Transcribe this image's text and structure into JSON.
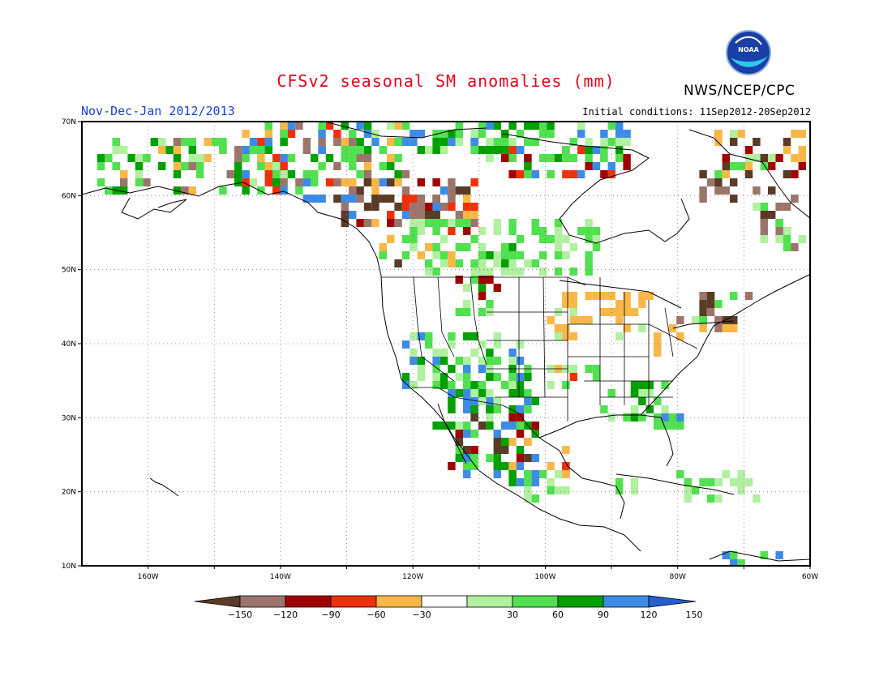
{
  "header": {
    "title": "CFSv2 seasonal SM anomalies (mm)",
    "agency": "NWS/NCEP/CPC",
    "logo_text": "NOAA",
    "period": "Nov-Dec-Jan 2012/2013",
    "initial_conditions": "Initial conditions: 11Sep2012-20Sep2012"
  },
  "map": {
    "lon_range": [
      -170,
      -60
    ],
    "lat_range": [
      10,
      70
    ],
    "grid": true,
    "lat_ticks": [
      "70N",
      "60N",
      "50N",
      "40N",
      "30N",
      "20N",
      "10N"
    ],
    "lon_ticks": [
      "160W",
      "140W",
      "120W",
      "100W",
      "80W",
      "60W"
    ]
  },
  "colorbar": {
    "labels": [
      "-150",
      "-120",
      "-90",
      "-60",
      "-30",
      "30",
      "60",
      "90",
      "120",
      "150"
    ],
    "colors": [
      "#5a3b26",
      "#9b756c",
      "#a00000",
      "#f0300a",
      "#f8b848",
      "#ffffff",
      "#b0f0a0",
      "#50e050",
      "#00a000",
      "#3c8ce6",
      "#2060d0"
    ]
  }
}
